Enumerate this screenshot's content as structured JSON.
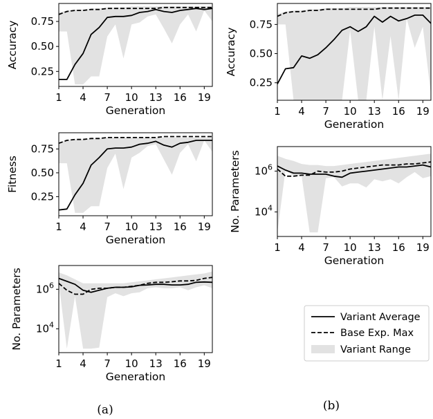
{
  "figure": {
    "captions": [
      "(a)",
      "(b)"
    ],
    "legend": {
      "entries": [
        {
          "label": "Variant Average",
          "style": "solid"
        },
        {
          "label": "Base Exp. Max",
          "style": "dashed"
        },
        {
          "label": "Variant Range",
          "style": "band"
        }
      ]
    },
    "colors": {
      "line": "#000000",
      "band": "#e2e2e2"
    }
  },
  "chart_data": [
    {
      "id": "a1",
      "type": "line",
      "xlabel": "Generation",
      "ylabel": "Accuracy",
      "xlim": [
        1,
        20
      ],
      "ylim": [
        0.1,
        0.93
      ],
      "xticks": [
        1,
        4,
        7,
        10,
        13,
        16,
        19
      ],
      "yticks": [
        0.25,
        0.5,
        0.75
      ],
      "ytick_labels": [
        "0.25",
        "0.50",
        "0.75"
      ],
      "x": [
        1,
        2,
        3,
        4,
        5,
        6,
        7,
        8,
        9,
        10,
        11,
        12,
        13,
        14,
        15,
        16,
        17,
        18,
        19,
        20
      ],
      "series": [
        {
          "name": "Variant Average",
          "values": [
            0.17,
            0.17,
            0.32,
            0.43,
            0.62,
            0.69,
            0.79,
            0.8,
            0.8,
            0.81,
            0.84,
            0.85,
            0.87,
            0.85,
            0.84,
            0.86,
            0.87,
            0.88,
            0.87,
            0.88
          ]
        },
        {
          "name": "Base Exp. Max",
          "values": [
            0.82,
            0.85,
            0.86,
            0.86,
            0.87,
            0.87,
            0.88,
            0.88,
            0.88,
            0.88,
            0.88,
            0.88,
            0.88,
            0.89,
            0.89,
            0.89,
            0.89,
            0.89,
            0.89,
            0.89
          ]
        }
      ],
      "range": {
        "low": [
          0.65,
          0.65,
          0.12,
          0.12,
          0.2,
          0.2,
          0.6,
          0.72,
          0.38,
          0.72,
          0.74,
          0.8,
          0.82,
          0.68,
          0.53,
          0.72,
          0.82,
          0.65,
          0.86,
          0.75
        ],
        "high": [
          0.84,
          0.86,
          0.87,
          0.87,
          0.88,
          0.88,
          0.89,
          0.89,
          0.89,
          0.9,
          0.9,
          0.9,
          0.9,
          0.9,
          0.9,
          0.9,
          0.9,
          0.9,
          0.9,
          0.9
        ]
      }
    },
    {
      "id": "a2",
      "type": "line",
      "xlabel": "Generation",
      "ylabel": "Fitness",
      "xlim": [
        1,
        20
      ],
      "ylim": [
        0.05,
        0.92
      ],
      "xticks": [
        1,
        4,
        7,
        10,
        13,
        16,
        19
      ],
      "yticks": [
        0.25,
        0.5,
        0.75
      ],
      "ytick_labels": [
        "0.25",
        "0.50",
        "0.75"
      ],
      "x": [
        1,
        2,
        3,
        4,
        5,
        6,
        7,
        8,
        9,
        10,
        11,
        12,
        13,
        14,
        15,
        16,
        17,
        18,
        19,
        20
      ],
      "series": [
        {
          "name": "Variant Average",
          "values": [
            0.11,
            0.12,
            0.27,
            0.39,
            0.58,
            0.66,
            0.75,
            0.76,
            0.76,
            0.77,
            0.8,
            0.81,
            0.83,
            0.79,
            0.77,
            0.81,
            0.82,
            0.84,
            0.84,
            0.84
          ]
        },
        {
          "name": "Base Exp. Max",
          "values": [
            0.81,
            0.84,
            0.85,
            0.85,
            0.86,
            0.86,
            0.87,
            0.87,
            0.87,
            0.87,
            0.87,
            0.87,
            0.87,
            0.88,
            0.88,
            0.88,
            0.88,
            0.88,
            0.88,
            0.88
          ]
        }
      ],
      "range": {
        "low": [
          0.6,
          0.6,
          0.08,
          0.08,
          0.15,
          0.15,
          0.55,
          0.7,
          0.33,
          0.66,
          0.71,
          0.78,
          0.8,
          0.64,
          0.48,
          0.71,
          0.8,
          0.62,
          0.84,
          0.72
        ],
        "high": [
          0.82,
          0.84,
          0.85,
          0.85,
          0.86,
          0.86,
          0.87,
          0.87,
          0.87,
          0.87,
          0.87,
          0.87,
          0.87,
          0.87,
          0.87,
          0.87,
          0.87,
          0.87,
          0.87,
          0.87
        ]
      }
    },
    {
      "id": "a3",
      "type": "line",
      "xlabel": "Generation",
      "ylabel": "No. Parameters",
      "yscale": "log",
      "xlim": [
        1,
        20
      ],
      "ylim_exp": [
        2.8,
        7.2
      ],
      "xticks": [
        1,
        4,
        7,
        10,
        13,
        16,
        19
      ],
      "yticks_exp": [
        4,
        6
      ],
      "x": [
        1,
        2,
        3,
        4,
        5,
        6,
        7,
        8,
        9,
        10,
        11,
        12,
        13,
        14,
        15,
        16,
        17,
        18,
        19,
        20
      ],
      "series": [
        {
          "name": "Variant Average",
          "values_exp": [
            6.55,
            6.4,
            6.25,
            5.95,
            5.85,
            5.95,
            6.05,
            6.1,
            6.1,
            6.12,
            6.2,
            6.22,
            6.25,
            6.25,
            6.22,
            6.22,
            6.25,
            6.35,
            6.37,
            6.35
          ]
        },
        {
          "name": "Base Exp. Max",
          "values_exp": [
            6.3,
            5.95,
            5.75,
            5.75,
            6.0,
            6.05,
            6.05,
            6.1,
            6.1,
            6.15,
            6.2,
            6.3,
            6.35,
            6.35,
            6.38,
            6.42,
            6.42,
            6.45,
            6.55,
            6.6
          ]
        }
      ],
      "range": {
        "low_exp": [
          6.3,
          3.0,
          5.65,
          3.0,
          3.0,
          3.05,
          5.6,
          5.8,
          5.65,
          5.8,
          5.85,
          6.05,
          6.1,
          6.05,
          6.05,
          6.1,
          5.95,
          6.1,
          6.2,
          6.05
        ],
        "high_exp": [
          6.85,
          6.7,
          6.5,
          6.3,
          6.3,
          6.3,
          6.3,
          6.3,
          6.3,
          6.35,
          6.4,
          6.45,
          6.5,
          6.55,
          6.6,
          6.65,
          6.7,
          6.75,
          6.8,
          6.9
        ]
      }
    },
    {
      "id": "b1",
      "type": "line",
      "xlabel": "Generation",
      "ylabel": "Accuracy",
      "xlim": [
        1,
        20
      ],
      "ylim": [
        0.1,
        0.93
      ],
      "xticks": [
        1,
        4,
        7,
        10,
        13,
        16,
        19
      ],
      "yticks": [
        0.25,
        0.5,
        0.75
      ],
      "ytick_labels": [
        "0.25",
        "0.50",
        "0.75"
      ],
      "x": [
        1,
        2,
        3,
        4,
        5,
        6,
        7,
        8,
        9,
        10,
        11,
        12,
        13,
        14,
        15,
        16,
        17,
        18,
        19,
        20
      ],
      "series": [
        {
          "name": "Variant Average",
          "values": [
            0.24,
            0.37,
            0.38,
            0.48,
            0.46,
            0.49,
            0.55,
            0.62,
            0.7,
            0.73,
            0.69,
            0.73,
            0.82,
            0.77,
            0.82,
            0.78,
            0.8,
            0.83,
            0.83,
            0.76
          ]
        },
        {
          "name": "Base Exp. Max",
          "values": [
            0.82,
            0.85,
            0.86,
            0.86,
            0.87,
            0.87,
            0.88,
            0.88,
            0.88,
            0.88,
            0.88,
            0.88,
            0.88,
            0.89,
            0.89,
            0.89,
            0.89,
            0.89,
            0.89,
            0.89
          ]
        }
      ],
      "range": {
        "low": [
          0.75,
          0.75,
          0.1,
          0.1,
          0.1,
          0.1,
          0.1,
          0.1,
          0.1,
          0.7,
          0.1,
          0.1,
          0.73,
          0.1,
          0.65,
          0.1,
          0.8,
          0.55,
          0.73,
          0.15
        ],
        "high": [
          0.84,
          0.86,
          0.87,
          0.87,
          0.88,
          0.88,
          0.89,
          0.89,
          0.89,
          0.9,
          0.9,
          0.9,
          0.9,
          0.9,
          0.9,
          0.9,
          0.9,
          0.9,
          0.9,
          0.9
        ]
      }
    },
    {
      "id": "b2",
      "type": "line",
      "xlabel": "Generation",
      "ylabel": "No. Parameters",
      "yscale": "log",
      "xlim": [
        1,
        20
      ],
      "ylim_exp": [
        2.8,
        7.2
      ],
      "xticks": [
        1,
        4,
        7,
        10,
        13,
        16,
        19
      ],
      "yticks_exp": [
        4,
        6
      ],
      "x": [
        1,
        2,
        3,
        4,
        5,
        6,
        7,
        8,
        9,
        10,
        11,
        12,
        13,
        14,
        15,
        16,
        17,
        18,
        19,
        20
      ],
      "series": [
        {
          "name": "Variant Average",
          "values_exp": [
            6.25,
            6.05,
            5.9,
            5.9,
            5.85,
            5.85,
            5.85,
            5.75,
            5.7,
            5.9,
            5.95,
            6.0,
            6.05,
            6.1,
            6.15,
            6.2,
            6.2,
            6.25,
            6.3,
            6.2
          ]
        },
        {
          "name": "Base Exp. Max",
          "values_exp": [
            6.1,
            5.75,
            5.75,
            5.8,
            5.8,
            6.0,
            5.95,
            5.95,
            6.0,
            6.1,
            6.15,
            6.2,
            6.25,
            6.3,
            6.3,
            6.3,
            6.35,
            6.35,
            6.4,
            6.45
          ]
        }
      ],
      "range": {
        "low_exp": [
          3.0,
          6.05,
          5.75,
          5.75,
          3.0,
          3.0,
          5.65,
          5.7,
          5.25,
          5.4,
          5.4,
          5.2,
          5.6,
          5.5,
          5.6,
          5.4,
          5.7,
          5.95,
          5.65,
          5.75
        ],
        "high_exp": [
          6.75,
          6.6,
          6.5,
          6.35,
          6.3,
          6.3,
          6.25,
          6.25,
          6.3,
          6.35,
          6.4,
          6.45,
          6.5,
          6.55,
          6.6,
          6.65,
          6.7,
          6.75,
          6.8,
          6.85
        ]
      }
    }
  ]
}
